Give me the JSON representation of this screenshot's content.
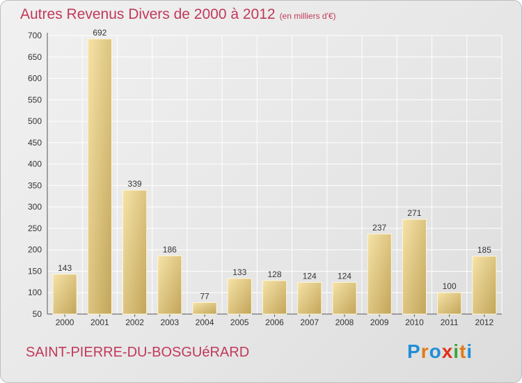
{
  "header": {
    "title": "Autres Revenus Divers de 2000 à 2012",
    "unit": "(en milliers d'€)"
  },
  "footer": {
    "city": "SAINT-PIERRE-DU-BOSGUéRARD",
    "logo_text": "Proxiti"
  },
  "colors": {
    "title": "#c0395b",
    "bar_light": "#f3dc9c",
    "bar_dark": "#c2a559",
    "grid": "#ffffff",
    "logo": [
      "#1f8fd6",
      "#e07b1a",
      "#1f8fd6",
      "#e0311a",
      "#3aa63a",
      "#e07b1a",
      "#1f8fd6"
    ]
  },
  "chart_data": {
    "type": "bar",
    "categories": [
      "2000",
      "2001",
      "2002",
      "2003",
      "2004",
      "2005",
      "2006",
      "2007",
      "2008",
      "2009",
      "2010",
      "2011",
      "2012"
    ],
    "values": [
      143,
      692,
      339,
      186,
      77,
      133,
      128,
      124,
      124,
      237,
      271,
      100,
      185
    ],
    "ylim": [
      50,
      700
    ],
    "yticks": [
      50,
      100,
      150,
      200,
      250,
      300,
      350,
      400,
      450,
      500,
      550,
      600,
      650,
      700
    ],
    "grid": true,
    "data_labels": true
  }
}
